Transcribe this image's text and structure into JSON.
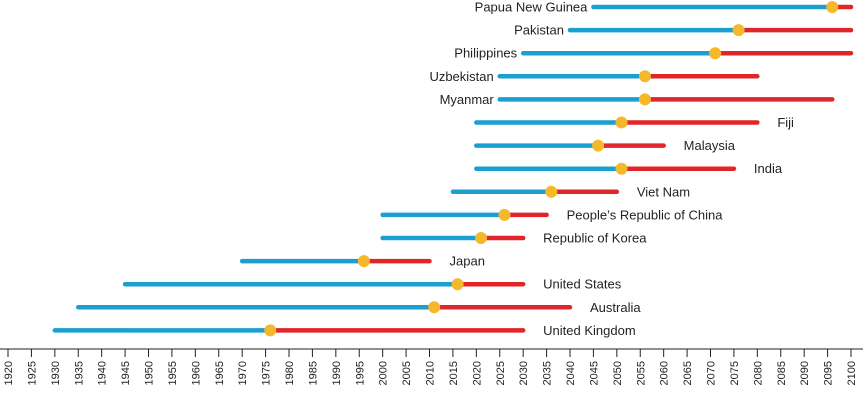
{
  "chart_data": {
    "type": "timeline",
    "title": "",
    "x_axis": {
      "min": 1920,
      "max": 2100,
      "tick_step": 5,
      "tick_labels": [
        "1920",
        "1925",
        "1930",
        "1935",
        "1940",
        "1945",
        "1950",
        "1955",
        "1960",
        "1965",
        "1970",
        "1975",
        "1980",
        "1985",
        "1990",
        "1995",
        "2000",
        "2005",
        "2010",
        "2015",
        "2020",
        "2025",
        "2030",
        "2035",
        "2040",
        "2045",
        "2050",
        "2055",
        "2060",
        "2065",
        "2070",
        "2075",
        "2080",
        "2085",
        "2090",
        "2095",
        "2100"
      ]
    },
    "series_colors": {
      "before": "#1a9fd0",
      "after": "#e0262a",
      "marker": "#f6b82b"
    },
    "countries": [
      {
        "name": "Papua New Guinea",
        "start": 2045,
        "marker": 2096,
        "end": 2100,
        "label_side": "left"
      },
      {
        "name": "Pakistan",
        "start": 2040,
        "marker": 2076,
        "end": 2100,
        "label_side": "left"
      },
      {
        "name": "Philippines",
        "start": 2030,
        "marker": 2071,
        "end": 2100,
        "label_side": "left"
      },
      {
        "name": "Uzbekistan",
        "start": 2025,
        "marker": 2056,
        "end": 2080,
        "label_side": "left"
      },
      {
        "name": "Myanmar",
        "start": 2025,
        "marker": 2056,
        "end": 2096,
        "label_side": "left"
      },
      {
        "name": "Fiji",
        "start": 2020,
        "marker": 2051,
        "end": 2080,
        "label_side": "right"
      },
      {
        "name": "Malaysia",
        "start": 2020,
        "marker": 2046,
        "end": 2060,
        "label_side": "right"
      },
      {
        "name": "India",
        "start": 2020,
        "marker": 2051,
        "end": 2075,
        "label_side": "right"
      },
      {
        "name": "Viet Nam",
        "start": 2015,
        "marker": 2036,
        "end": 2050,
        "label_side": "right"
      },
      {
        "name": "People’s Republic of China",
        "start": 2000,
        "marker": 2026,
        "end": 2035,
        "label_side": "right"
      },
      {
        "name": "Republic of Korea",
        "start": 2000,
        "marker": 2021,
        "end": 2030,
        "label_side": "right"
      },
      {
        "name": "Japan",
        "start": 1970,
        "marker": 1996,
        "end": 2010,
        "label_side": "right"
      },
      {
        "name": "United States",
        "start": 1945,
        "marker": 2016,
        "end": 2030,
        "label_side": "right"
      },
      {
        "name": "Australia",
        "start": 1935,
        "marker": 2011,
        "end": 2040,
        "label_side": "right"
      },
      {
        "name": "United Kingdom",
        "start": 1930,
        "marker": 1976,
        "end": 2030,
        "label_side": "right"
      }
    ]
  }
}
